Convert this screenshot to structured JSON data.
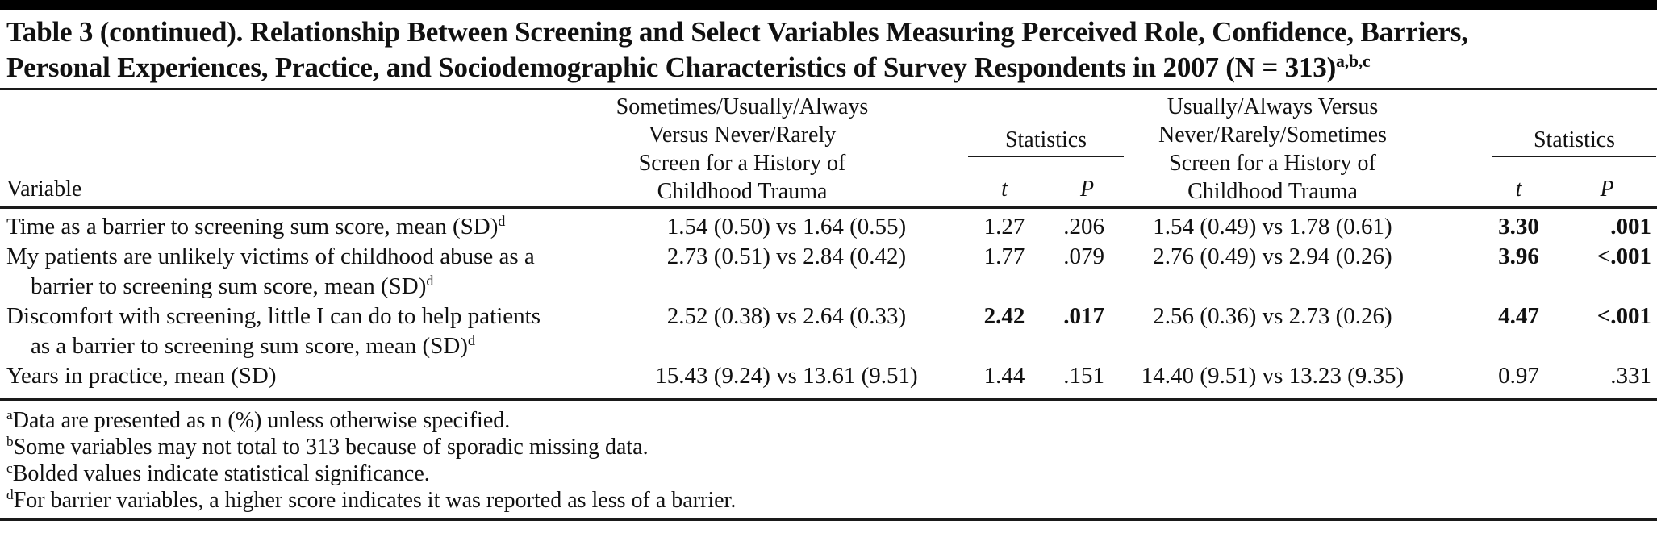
{
  "title": {
    "line1": "Table 3 (continued). Relationship Between Screening and Select Variables Measuring Perceived Role, Confidence, Barriers,",
    "line2": "Personal Experiences, Practice, and Sociodemographic Characteristics of Survey Respondents in 2007 (N = 313)",
    "sup": "a,b,c"
  },
  "header": {
    "variable": "Variable",
    "comp1_lines": [
      "Sometimes/Usually/Always",
      "Versus Never/Rarely",
      "Screen for a History of",
      "Childhood Trauma"
    ],
    "comp2_lines": [
      "Usually/Always Versus",
      "Never/Rarely/Sometimes",
      "Screen for a History of",
      "Childhood Trauma"
    ],
    "statistics": "Statistics",
    "t": "t",
    "p": "P"
  },
  "rows": [
    {
      "var_line1": "Time as a barrier to screening sum score, mean (SD)",
      "sup1": "d",
      "var_line2": "",
      "sup2": "",
      "comp1": "1.54 (0.50) vs 1.64 (0.55)",
      "t1": "1.27",
      "p1": ".206",
      "t1_bold": false,
      "p1_bold": false,
      "comp2": "1.54 (0.49) vs 1.78 (0.61)",
      "t2": "3.30",
      "p2": ".001",
      "t2_bold": true,
      "p2_bold": true
    },
    {
      "var_line1": "My patients are unlikely victims of childhood abuse as a",
      "sup1": "",
      "var_line2": "barrier to screening sum score, mean (SD)",
      "sup2": "d",
      "comp1": "2.73 (0.51) vs 2.84 (0.42)",
      "t1": "1.77",
      "p1": ".079",
      "t1_bold": false,
      "p1_bold": false,
      "comp2": "2.76 (0.49) vs 2.94 (0.26)",
      "t2": "3.96",
      "p2": "<.001",
      "t2_bold": true,
      "p2_bold": true
    },
    {
      "var_line1": "Discomfort with screening, little I can do to help patients",
      "sup1": "",
      "var_line2": "as a barrier to screening sum score, mean (SD)",
      "sup2": "d",
      "comp1": "2.52 (0.38) vs 2.64 (0.33)",
      "t1": "2.42",
      "p1": ".017",
      "t1_bold": true,
      "p1_bold": true,
      "comp2": "2.56 (0.36) vs 2.73 (0.26)",
      "t2": "4.47",
      "p2": "<.001",
      "t2_bold": true,
      "p2_bold": true
    },
    {
      "var_line1": "Years in practice, mean (SD)",
      "sup1": "",
      "var_line2": "",
      "sup2": "",
      "comp1": "15.43 (9.24) vs 13.61 (9.51)",
      "t1": "1.44",
      "p1": ".151",
      "t1_bold": false,
      "p1_bold": false,
      "comp2": "14.40 (9.51) vs 13.23 (9.35)",
      "t2": "0.97",
      "p2": ".331",
      "t2_bold": false,
      "p2_bold": false
    }
  ],
  "footnotes": [
    {
      "sup": "a",
      "text": "Data are presented as n (%) unless otherwise specified."
    },
    {
      "sup": "b",
      "text": "Some variables may not total to 313 because of sporadic missing data."
    },
    {
      "sup": "c",
      "text": "Bolded values indicate statistical significance."
    },
    {
      "sup": "d",
      "text": "For barrier variables, a higher score indicates it was reported as less of a barrier."
    }
  ],
  "colors": {
    "text": "#111111",
    "rule": "#1a1a1a",
    "background": "#ffffff"
  }
}
